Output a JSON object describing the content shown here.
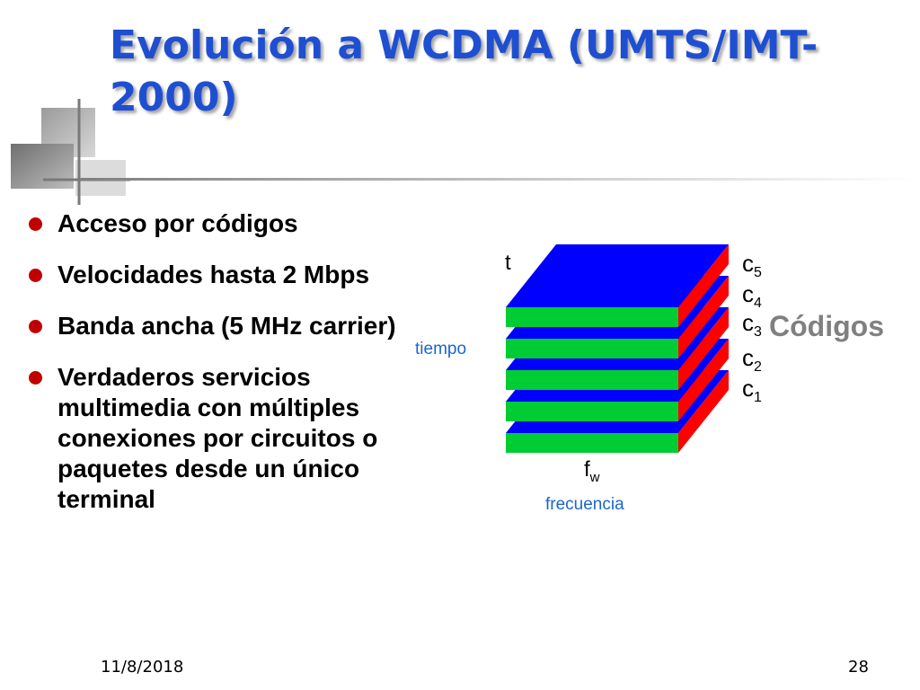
{
  "slide": {
    "title": "Evolución a WCDMA (UMTS/IMT-2000)",
    "bullets": [
      "Acceso por códigos",
      "Velocidades hasta 2 Mbps",
      "Banda ancha  (5 MHz carrier)",
      "Verdaderos servicios multimedia con múltiples conexiones por circuitos o paquetes desde un único terminal"
    ],
    "date": "11/8/2018",
    "page_number": "28"
  },
  "diagram": {
    "axis_time": "t",
    "axis_time_word": "tiempo",
    "axis_freq": "f",
    "axis_freq_sub": "w",
    "axis_freq_word": "frecuencia",
    "codes_word": "Códigos",
    "codes": [
      {
        "c": "c",
        "sub": "5"
      },
      {
        "c": "c",
        "sub": "4"
      },
      {
        "c": "c",
        "sub": "3"
      },
      {
        "c": "c",
        "sub": "2"
      },
      {
        "c": "c",
        "sub": "1"
      }
    ],
    "colors": {
      "top": "#0000ff",
      "front": "#00cc33",
      "side": "#ff0000",
      "label_blue": "#1a66cc",
      "codes_word": "#808080",
      "title": "#1f4fd1",
      "bullet": "#c00000"
    }
  }
}
